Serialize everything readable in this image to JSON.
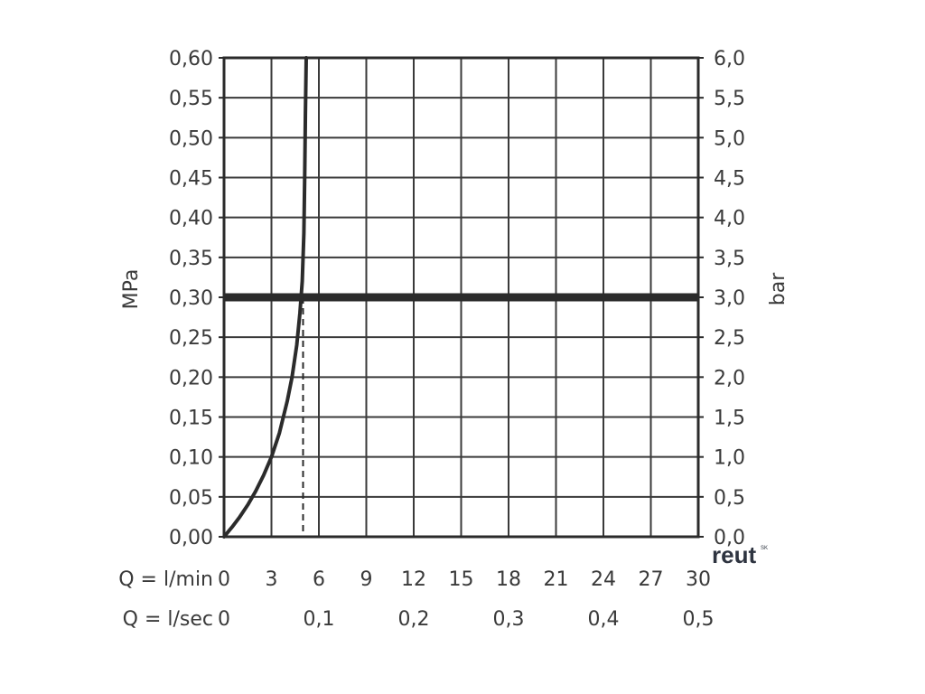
{
  "chart_data": {
    "type": "line",
    "ylabel_left": "MPa",
    "ylabel_right": "bar",
    "ylim": [
      0,
      0.6
    ],
    "xlim": [
      0,
      30
    ],
    "y_ticks_left": [
      "0,00",
      "0,05",
      "0,10",
      "0,15",
      "0,20",
      "0,25",
      "0,30",
      "0,35",
      "0,40",
      "0,45",
      "0,50",
      "0,55",
      "0,60"
    ],
    "y_ticks_right": [
      "0,0",
      "0,5",
      "1,0",
      "1,5",
      "2,0",
      "2,5",
      "3,0",
      "3,5",
      "4,0",
      "4,5",
      "5,0",
      "5,5",
      "6,0"
    ],
    "x_ticks_lmin": [
      "0",
      "3",
      "6",
      "9",
      "12",
      "15",
      "18",
      "21",
      "24",
      "27",
      "30"
    ],
    "x_label_lmin": "Q = l/min",
    "x_ticks_lsec": [
      "0",
      "0,1",
      "0,2",
      "0,3",
      "0,4",
      "0,5"
    ],
    "x_label_lsec": "Q = l/sec",
    "grid": true,
    "series": [
      {
        "x": [
          0,
          0.5,
          1.0,
          1.5,
          2.0,
          2.5,
          3.0,
          3.5,
          4.0,
          4.3,
          4.6,
          4.8,
          4.95,
          5.05,
          5.1,
          5.15,
          5.2
        ],
        "y": [
          0,
          0.012,
          0.025,
          0.04,
          0.057,
          0.077,
          0.1,
          0.13,
          0.17,
          0.2,
          0.24,
          0.28,
          0.32,
          0.38,
          0.45,
          0.53,
          0.6
        ]
      }
    ],
    "reference_line_y": 0.3,
    "reference_drop_x": 5.0
  },
  "logo": {
    "text": "reut",
    "sup": "SK"
  }
}
